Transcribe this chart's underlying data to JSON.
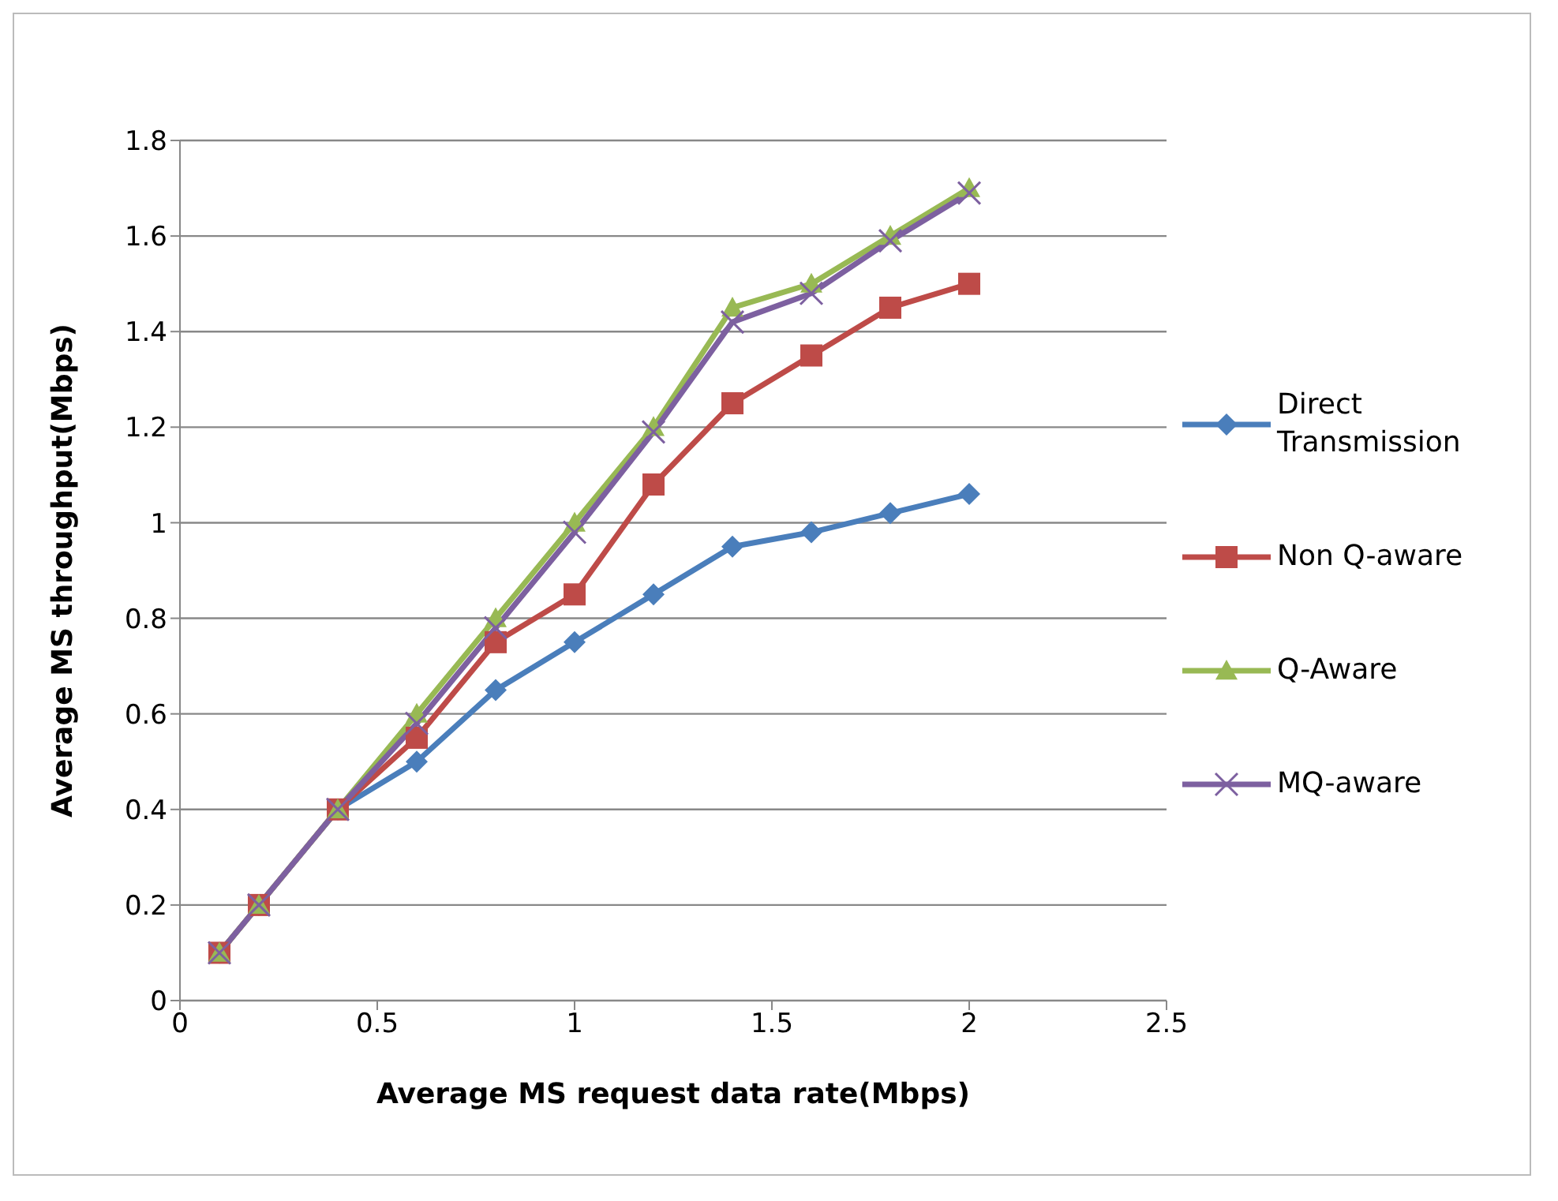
{
  "chart_data": {
    "type": "line",
    "xlabel": "Average MS request data rate(Mbps)",
    "ylabel": "Average MS throughput(Mbps)",
    "x": [
      0.1,
      0.2,
      0.4,
      0.6,
      0.8,
      1.0,
      1.2,
      1.4,
      1.6,
      1.8,
      2.0
    ],
    "xlim": [
      0,
      2.5
    ],
    "xticks": [
      0,
      0.5,
      1,
      1.5,
      2,
      2.5
    ],
    "ylim": [
      0,
      1.8
    ],
    "yticks": [
      0,
      0.2,
      0.4,
      0.6,
      0.8,
      1,
      1.2,
      1.4,
      1.6,
      1.8
    ],
    "grid": "y",
    "legend": "right",
    "line_style": "solid",
    "series": [
      {
        "name": "Direct Transmission",
        "color": "#4a7ebb",
        "marker": "diamond",
        "values": [
          0.1,
          0.2,
          0.4,
          0.5,
          0.65,
          0.75,
          0.85,
          0.95,
          0.98,
          1.02,
          1.06
        ]
      },
      {
        "name": "Non Q-aware",
        "color": "#be4b48",
        "marker": "square",
        "values": [
          0.1,
          0.2,
          0.4,
          0.55,
          0.75,
          0.85,
          1.08,
          1.25,
          1.35,
          1.45,
          1.5
        ]
      },
      {
        "name": "Q-Aware",
        "color": "#98b954",
        "marker": "triangle",
        "values": [
          0.1,
          0.2,
          0.4,
          0.6,
          0.8,
          1.0,
          1.2,
          1.45,
          1.5,
          1.6,
          1.7
        ]
      },
      {
        "name": "MQ-aware",
        "color": "#7d60a0",
        "marker": "cross",
        "values": [
          0.1,
          0.2,
          0.4,
          0.58,
          0.78,
          0.98,
          1.19,
          1.42,
          1.48,
          1.59,
          1.69
        ]
      }
    ]
  }
}
